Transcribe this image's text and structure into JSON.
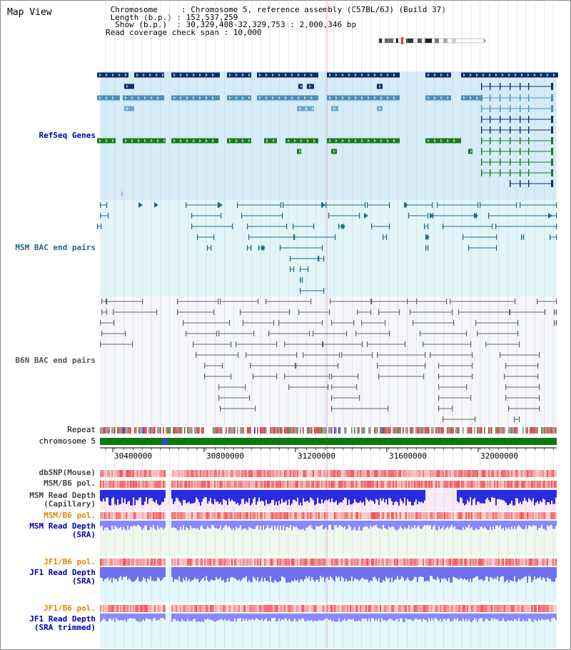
{
  "header": {
    "title": "Map View",
    "lines": [
      " Chromosome     : Chromosome 5, reference assembly (C57BL/6J) (Build 37)",
      " Length (b.p.) : 152,537,259",
      "  Show (b.p.)  : 30,329,408-32,329,753 : 2,000,346 bp",
      "Read coverage check span : 10,000"
    ]
  },
  "colors": {
    "refseq_dark": "#0a3068",
    "refseq_mid": "#4a90b8",
    "refseq_light": "#6aaad0",
    "refseq_green": "#1a7a1a",
    "msm_bac": "#1a6a8a",
    "b6n_bac": "#666666",
    "repeat_red": "#d03030",
    "chromosome_green": "#117711",
    "snp_red": "#ee5555",
    "depth_blue": "#2a2ae0",
    "depth_sra": "#8888ff",
    "label_blue": "#0000aa",
    "label_teal": "#1a6a8a",
    "label_orange": "#dd8800"
  },
  "tracks": [
    {
      "name": "refseq-genes",
      "label": "RefSeq Genes",
      "color": "#0000aa"
    },
    {
      "name": "msm-bac-end-pairs",
      "label": "MSM BAC end pairs",
      "color": "#1a6a8a"
    },
    {
      "name": "b6n-bac-end-pairs",
      "label": "B6N BAC end pairs",
      "color": "#555555"
    },
    {
      "name": "repeat",
      "label": "Repeat",
      "color": "#000000"
    },
    {
      "name": "chromosome",
      "label": "chromosome 5",
      "color": "#000000"
    },
    {
      "name": "dbsnp-mouse",
      "label": "dbSNP(Mouse)",
      "color": "#444444"
    },
    {
      "name": "msm-b6-pol",
      "label": "MSM/B6 pol.",
      "color": "#444444"
    },
    {
      "name": "msm-read-depth-capillary",
      "label": "MSM Read Depth\n(Capillary)",
      "color": "#444444"
    },
    {
      "name": "msm-b6-pol-2",
      "label": "MSM/B6 pol.",
      "color": "#dd8800"
    },
    {
      "name": "msm-read-depth-sra",
      "label": "MSM Read Depth\n(SRA)",
      "color": "#0000aa"
    },
    {
      "name": "jf1-b6-pol",
      "label": "JF1/B6 pol.",
      "color": "#dd8800"
    },
    {
      "name": "jf1-read-depth-sra",
      "label": "JF1 Read Depth\n(SRA)",
      "color": "#0000aa"
    },
    {
      "name": "jf1-b6-pol-2",
      "label": "JF1/B6 pol.",
      "color": "#dd8800"
    },
    {
      "name": "jf1-read-depth-sra-trimmed",
      "label": "JF1 Read Depth\n(SRA trimmed)",
      "color": "#0000aa"
    }
  ],
  "axis": {
    "ticks": [
      "30400000",
      "30800000",
      "31200000",
      "31600000",
      "32000000"
    ]
  }
}
